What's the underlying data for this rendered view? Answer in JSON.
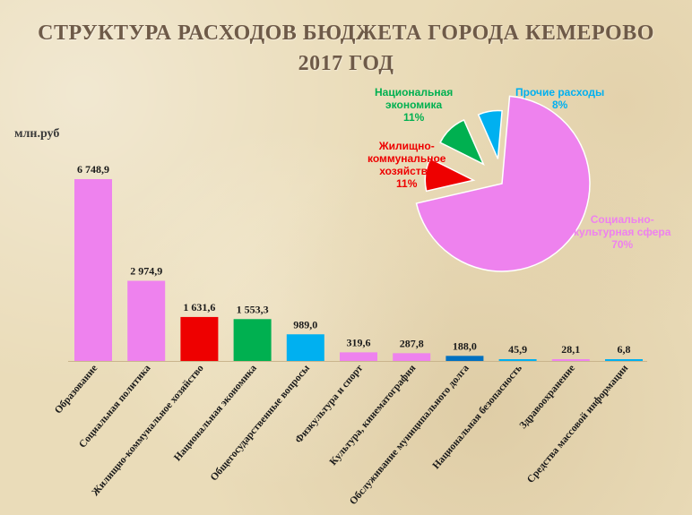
{
  "title_line1": "СТРУКТУРА РАСХОДОВ БЮДЖЕТА ГОРОДА КЕМЕРОВО",
  "title_line2": "2017 ГОД",
  "unit_label": "млн.руб",
  "chart_data": [
    {
      "type": "bar",
      "ylabel": "млн.руб",
      "categories": [
        "Образование",
        "Социальная политика",
        "Жилищно-коммунальное хозяйство",
        "Национальная экономика",
        "Общегосударственные вопросы",
        "Физкультура и спорт",
        "Культура, кинематография",
        "Обслуживание муниципального долга",
        "Национальная безопасность",
        "Здравоохранение",
        "Средства массовой информации"
      ],
      "values": [
        6748.9,
        2974.9,
        1631.6,
        1553.3,
        989.0,
        319.6,
        287.8,
        188.0,
        45.9,
        28.1,
        6.8
      ],
      "value_labels": [
        "6 748,9",
        "2 974,9",
        "1 631,6",
        "1 553,3",
        "989,0",
        "319,6",
        "287,8",
        "188,0",
        "45,9",
        "28,1",
        "6,8"
      ],
      "colors": [
        "#ee82ee",
        "#ee82ee",
        "#ee0000",
        "#00b050",
        "#00b0f0",
        "#ee82ee",
        "#ee82ee",
        "#0070c0",
        "#00b0f0",
        "#ee82ee",
        "#00b0f0"
      ],
      "ylim": [
        0,
        6900
      ],
      "grid": false
    },
    {
      "type": "pie",
      "slices": [
        {
          "label_lines": [
            "Социально-",
            "культурная  сфера",
            "70%"
          ],
          "value": 70,
          "color": "#ee82ee"
        },
        {
          "label_lines": [
            "Жилищно-",
            "коммунальное",
            "хозяйство",
            "11%"
          ],
          "value": 11,
          "color": "#ee0000"
        },
        {
          "label_lines": [
            "Национальная",
            "экономика",
            "11%"
          ],
          "value": 11,
          "color": "#00b050"
        },
        {
          "label_lines": [
            "Прочие расходы",
            "8%"
          ],
          "value": 8,
          "color": "#00b0f0"
        }
      ]
    }
  ]
}
